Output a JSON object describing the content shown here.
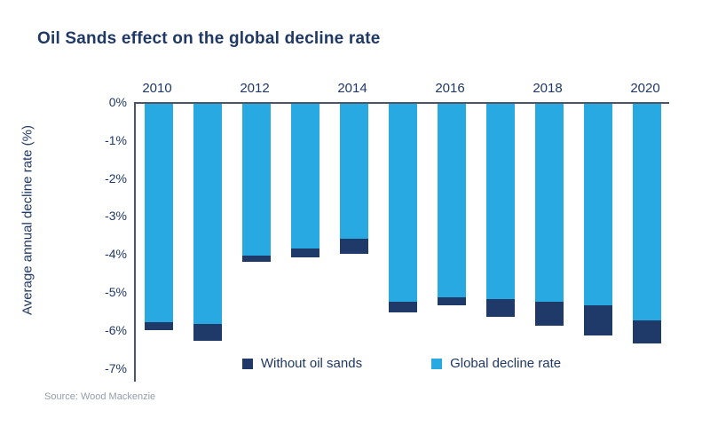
{
  "title": "Oil Sands effect on the global decline rate",
  "source": "Source: Wood Mackenzie",
  "colors": {
    "title_text": "#1f3864",
    "axis_line": "#4a5568",
    "tick_text": "#1f3864",
    "source_text": "#959ca9",
    "without_oil_sands": "#1f3a68",
    "global_decline_rate": "#29a9e1"
  },
  "chart_data": {
    "type": "bar",
    "stacked": true,
    "title": "Oil Sands effect on the global decline rate",
    "xlabel": "",
    "ylabel": "Average annual decline rate (%)",
    "ylim": [
      0,
      -7
    ],
    "grid": false,
    "legend_position": "bottom",
    "ytick_labels": [
      "0%",
      "-1%",
      "-2%",
      "-3%",
      "-4%",
      "-5%",
      "-6%",
      "-7%"
    ],
    "x": [
      2010,
      2011,
      2012,
      2013,
      2014,
      2015,
      2016,
      2017,
      2018,
      2019,
      2020
    ],
    "xtick_labels": [
      "2010",
      "2012",
      "2014",
      "2016",
      "2018",
      "2020"
    ],
    "series": [
      {
        "name": "Without oil sands",
        "color": "#1f3a68",
        "values": [
          -5.95,
          -6.25,
          -4.15,
          -4.05,
          -3.95,
          -5.5,
          -5.3,
          -5.6,
          -5.85,
          -6.1,
          -6.3
        ]
      },
      {
        "name": "Global decline rate",
        "color": "#29a9e1",
        "values": [
          -5.75,
          -5.8,
          -4.0,
          -3.8,
          -3.55,
          -5.2,
          -5.1,
          -5.15,
          -5.2,
          -5.3,
          -5.7
        ]
      }
    ]
  }
}
